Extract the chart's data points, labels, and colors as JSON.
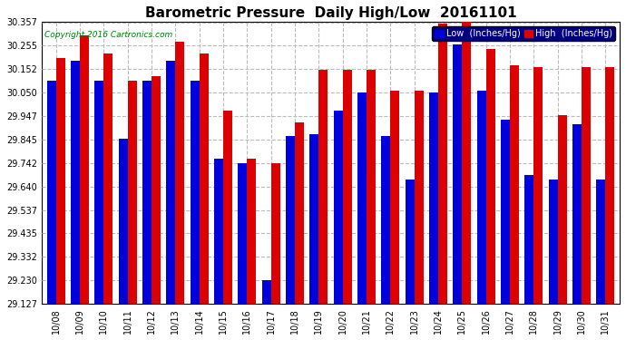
{
  "title": "Barometric Pressure  Daily High/Low  20161101",
  "copyright": "Copyright 2016 Cartronics.com",
  "legend_low": "Low  (Inches/Hg)",
  "legend_high": "High  (Inches/Hg)",
  "dates": [
    "10/08",
    "10/09",
    "10/10",
    "10/11",
    "10/12",
    "10/13",
    "10/14",
    "10/15",
    "10/16",
    "10/17",
    "10/18",
    "10/19",
    "10/20",
    "10/21",
    "10/22",
    "10/23",
    "10/24",
    "10/25",
    "10/26",
    "10/27",
    "10/28",
    "10/29",
    "10/30",
    "10/31"
  ],
  "low_values": [
    30.1,
    30.19,
    30.1,
    29.85,
    30.1,
    30.19,
    30.1,
    29.76,
    29.74,
    29.23,
    29.86,
    29.87,
    29.97,
    30.05,
    29.86,
    29.67,
    30.05,
    30.26,
    30.06,
    29.93,
    29.69,
    29.67,
    29.91,
    29.67
  ],
  "high_values": [
    30.2,
    30.3,
    30.22,
    30.1,
    30.12,
    30.27,
    30.22,
    29.97,
    29.76,
    29.74,
    29.92,
    30.15,
    30.15,
    30.15,
    30.06,
    30.06,
    30.35,
    30.36,
    30.24,
    30.17,
    30.16,
    29.95,
    30.16,
    30.16
  ],
  "ylim_min": 29.127,
  "ylim_max": 30.357,
  "yticks": [
    29.127,
    29.23,
    29.332,
    29.435,
    29.537,
    29.64,
    29.742,
    29.845,
    29.947,
    30.05,
    30.152,
    30.255,
    30.357
  ],
  "low_color": "#0000dd",
  "high_color": "#dd0000",
  "bg_color": "#ffffff",
  "grid_color": "#bbbbbb",
  "title_fontsize": 11,
  "tick_fontsize": 7,
  "bar_width": 0.38
}
